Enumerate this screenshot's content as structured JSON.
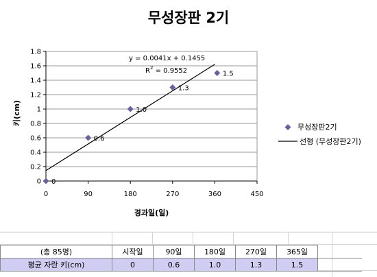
{
  "chart_data": {
    "type": "scatter",
    "title": "무성장판 2기",
    "xlabel": "경과일(일)",
    "ylabel": "키(cm)",
    "xlim": [
      0,
      450
    ],
    "ylim": [
      0,
      1.8
    ],
    "x_ticks": [
      "0",
      "90",
      "180",
      "270",
      "360",
      "450"
    ],
    "y_ticks": [
      "0",
      "0.2",
      "0.4",
      "0.6",
      "0.8",
      "1",
      "1.2",
      "1.4",
      "1.6",
      "1.8"
    ],
    "grid": "horizontal",
    "legend_position": "right",
    "series": [
      {
        "name": "무성장판2기",
        "color": "#6b5fa0",
        "marker": "diamond",
        "x": [
          0,
          90,
          180,
          270,
          365
        ],
        "y": [
          0,
          0.6,
          1.0,
          1.3,
          1.5
        ],
        "labels": [
          "0",
          "0.6",
          "1.0",
          "1.3",
          "1.5"
        ]
      }
    ],
    "trendline": {
      "name": "선형 (무성장판2기)",
      "slope": 0.0041,
      "intercept": 0.1455,
      "x_range": [
        0,
        360
      ],
      "equation": "y = 0.0041x + 0.1455",
      "r2_label": "R",
      "r2_exp": "2",
      "r2_value": " = 0.9552",
      "color": "#000000"
    }
  },
  "table": {
    "header": [
      "(총 85명)",
      "시작일",
      "90일",
      "180일",
      "270일",
      "365일"
    ],
    "values": [
      "평균 자란 키(cm)",
      "0",
      "0.6",
      "1.0",
      "1.3",
      "1.5"
    ]
  }
}
